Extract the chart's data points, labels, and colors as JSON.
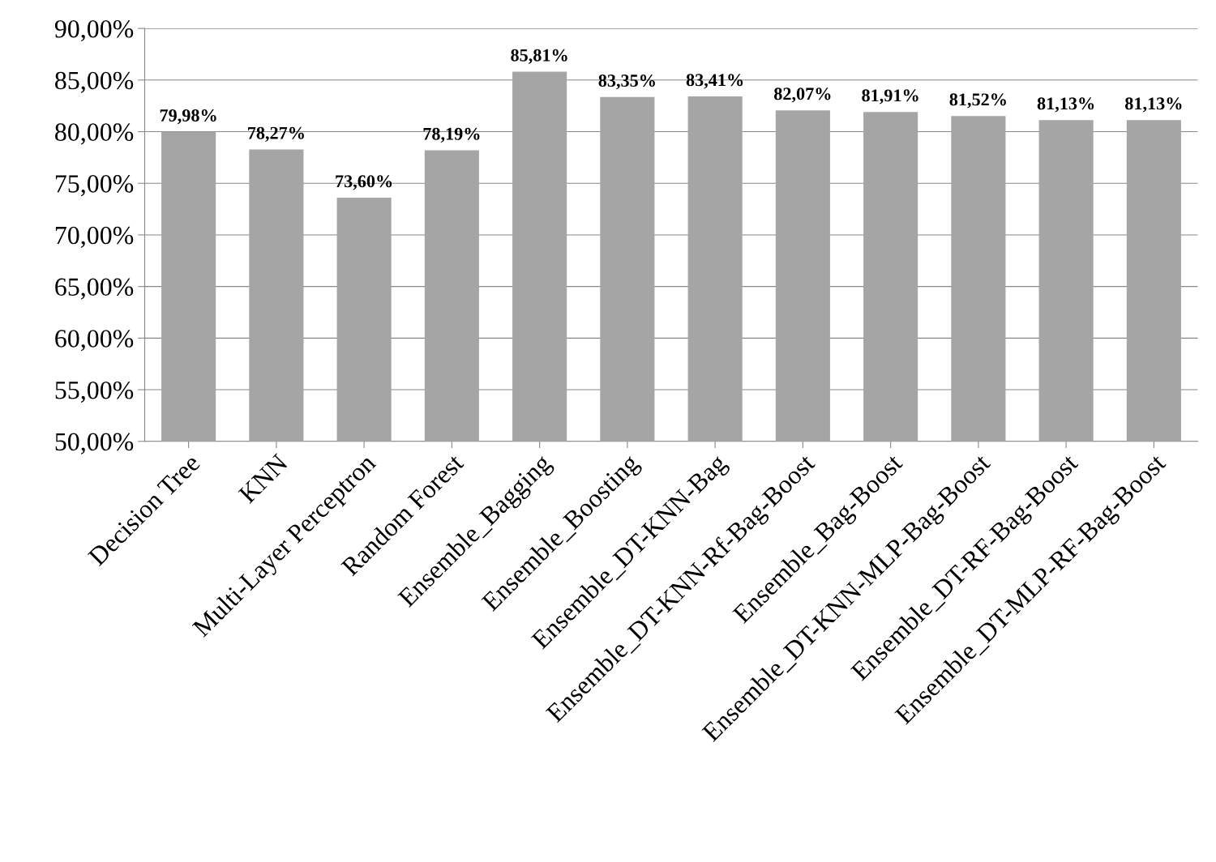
{
  "chart_data": {
    "type": "bar",
    "categories": [
      "Decision Tree",
      "KNN",
      "Multi-Layer Perceptron",
      "Random Forest",
      "Ensemble_Bagging",
      "Ensemble_Boosting",
      "Ensemble_DT-KNN-Bag",
      "Ensemble_DT-KNN-Rf-Bag-Boost",
      "Ensemble_Bag-Boost",
      "Ensemble_DT-KNN-MLP-Bag-Boost",
      "Ensemble_DT-RF-Bag-Boost",
      "Ensemble_DT-MLP-RF-Bag-Boost"
    ],
    "values": [
      79.98,
      78.27,
      73.6,
      78.19,
      85.81,
      83.35,
      83.41,
      82.07,
      81.91,
      81.52,
      81.13,
      81.13
    ],
    "value_labels": [
      "79,98%",
      "78,27%",
      "73,60%",
      "78,19%",
      "85,81%",
      "83,35%",
      "83,41%",
      "82,07%",
      "81,91%",
      "81,52%",
      "81,13%",
      "81,13%"
    ],
    "color": "#a5a5a5",
    "ylim": [
      50,
      90
    ],
    "yticks": [
      {
        "value": 50,
        "label": "50,00%"
      },
      {
        "value": 55,
        "label": "55,00%"
      },
      {
        "value": 60,
        "label": "60,00%"
      },
      {
        "value": 65,
        "label": "65,00%"
      },
      {
        "value": 70,
        "label": "70,00%"
      },
      {
        "value": 75,
        "label": "75,00%"
      },
      {
        "value": 80,
        "label": "80,00%"
      },
      {
        "value": 85,
        "label": "85,00%"
      },
      {
        "value": 90,
        "label": "90,00%"
      }
    ],
    "grid": "y",
    "legend": false
  }
}
